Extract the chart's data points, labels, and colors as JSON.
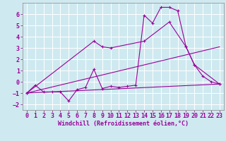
{
  "background_color": "#cfe9f0",
  "grid_color": "#ffffff",
  "line_color": "#990099",
  "xlabel": "Windchill (Refroidissement éolien,°C)",
  "xlabel_fontsize": 6.0,
  "tick_fontsize": 6.0,
  "xlim": [
    -0.5,
    23.5
  ],
  "ylim": [
    -2.5,
    7.0
  ],
  "yticks": [
    -2,
    -1,
    0,
    1,
    2,
    3,
    4,
    5,
    6
  ],
  "xticks": [
    0,
    1,
    2,
    3,
    4,
    5,
    6,
    7,
    8,
    9,
    10,
    11,
    12,
    13,
    14,
    15,
    16,
    17,
    18,
    19,
    20,
    21,
    22,
    23
  ],
  "series1_x": [
    0,
    1,
    2,
    3,
    4,
    5,
    6,
    7,
    8,
    9,
    10,
    11,
    12,
    13,
    14,
    15,
    16,
    17,
    18,
    19,
    20,
    21,
    22,
    23
  ],
  "series1_y": [
    -1.0,
    -0.3,
    -0.9,
    -0.9,
    -0.9,
    -1.7,
    -0.7,
    -0.5,
    1.1,
    -0.6,
    -0.4,
    -0.5,
    -0.4,
    -0.3,
    5.9,
    5.2,
    6.6,
    6.6,
    6.3,
    3.1,
    1.5,
    0.5,
    0.0,
    -0.2
  ],
  "series2_x": [
    0,
    23
  ],
  "series2_y": [
    -1.0,
    -0.2
  ],
  "series3_x": [
    0,
    23
  ],
  "series3_y": [
    -1.0,
    3.1
  ],
  "series4_x": [
    0,
    8,
    9,
    10,
    14,
    17,
    19,
    20,
    23
  ],
  "series4_y": [
    -1.0,
    3.6,
    3.1,
    3.0,
    3.6,
    5.3,
    3.1,
    1.5,
    -0.2
  ]
}
